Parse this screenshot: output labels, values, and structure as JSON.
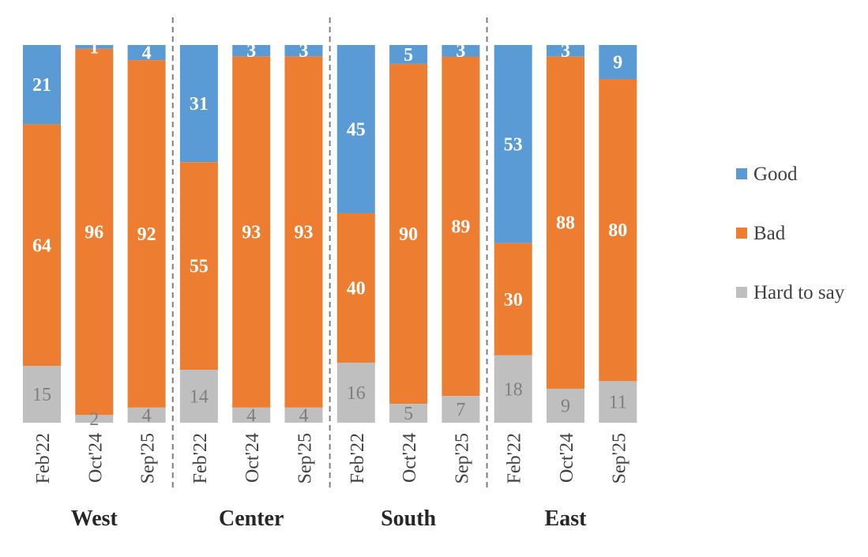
{
  "chart_data": {
    "type": "bar",
    "stacked": true,
    "percent": true,
    "groups": [
      {
        "name": "West",
        "categories": [
          "Feb'22",
          "Oct'24",
          "Sep'25"
        ]
      },
      {
        "name": "Center",
        "categories": [
          "Feb'22",
          "Oct'24",
          "Sep'25"
        ]
      },
      {
        "name": "South",
        "categories": [
          "Feb'22",
          "Oct'24",
          "Sep'25"
        ]
      },
      {
        "name": "East",
        "categories": [
          "Feb'22",
          "Oct'24",
          "Sep'25"
        ]
      }
    ],
    "series": [
      {
        "name": "Good",
        "color": "#5b9bd5",
        "values": [
          21,
          1,
          4,
          31,
          3,
          3,
          45,
          5,
          3,
          53,
          3,
          9
        ]
      },
      {
        "name": "Bad",
        "color": "#ed7d31",
        "values": [
          64,
          96,
          92,
          55,
          93,
          93,
          40,
          90,
          89,
          30,
          88,
          80
        ]
      },
      {
        "name": "Hard to say",
        "color": "#bfbfbf",
        "values": [
          15,
          2,
          4,
          14,
          4,
          4,
          16,
          5,
          7,
          18,
          9,
          11
        ]
      }
    ],
    "legend": "right",
    "grid": false,
    "title": "",
    "xlabel": "",
    "ylabel": ""
  }
}
